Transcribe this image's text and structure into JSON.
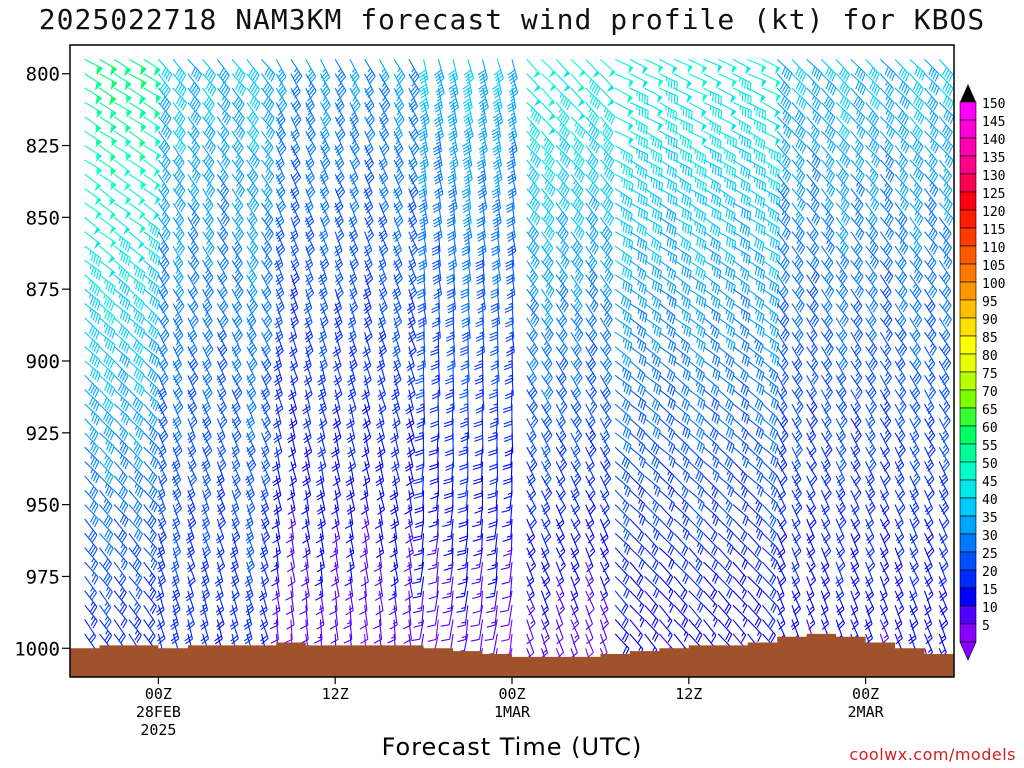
{
  "title": "2025022718 NAM3KM forecast wind profile (kt) for KBOS",
  "xlabel": "Forecast Time (UTC)",
  "credit": "coolwx.com/models",
  "chart_data": {
    "type": "wind-barb profile",
    "y_axis": {
      "label": "",
      "ticks": [
        800,
        825,
        850,
        875,
        900,
        925,
        950,
        975,
        1000
      ],
      "range_hpa": [
        790,
        1010
      ],
      "reversed": true
    },
    "x_axis": {
      "ticks": [
        {
          "hour": 6,
          "lines": [
            "00Z",
            "28FEB",
            "2025"
          ]
        },
        {
          "hour": 18,
          "lines": [
            "12Z"
          ]
        },
        {
          "hour": 30,
          "lines": [
            "00Z",
            "1MAR"
          ]
        },
        {
          "hour": 42,
          "lines": [
            "12Z"
          ]
        },
        {
          "hour": 54,
          "lines": [
            "00Z",
            "2MAR"
          ]
        }
      ],
      "range_hours": [
        0,
        60
      ]
    },
    "levels_hpa": [
      795,
      800,
      805,
      810,
      815,
      820,
      825,
      830,
      835,
      840,
      845,
      850,
      855,
      860,
      865,
      870,
      875,
      880,
      885,
      890,
      895,
      900,
      905,
      910,
      915,
      920,
      925,
      930,
      935,
      940,
      945,
      950,
      955,
      960,
      965,
      970,
      975,
      980,
      985,
      990,
      995,
      1000
    ],
    "forecast_hours": [
      1,
      2,
      3,
      4,
      5,
      6,
      7,
      8,
      9,
      10,
      11,
      12,
      13,
      14,
      15,
      16,
      17,
      18,
      19,
      20,
      21,
      22,
      23,
      24,
      25,
      26,
      27,
      28,
      29,
      30,
      31,
      32,
      33,
      34,
      35,
      36,
      37,
      38,
      39,
      40,
      41,
      42,
      43,
      44,
      45,
      46,
      47,
      48,
      49,
      50,
      51,
      52,
      53,
      54,
      55,
      56,
      57,
      58,
      59,
      60
    ],
    "wind_phases": [
      {
        "hours": [
          0,
          6
        ],
        "direction_deg": 300,
        "speed_kt_top": 60,
        "speed_kt_sfc": 20
      },
      {
        "hours": [
          6,
          14
        ],
        "direction_deg": 320,
        "speed_kt_top": 40,
        "speed_kt_sfc": 20
      },
      {
        "hours": [
          14,
          24
        ],
        "direction_deg": 330,
        "speed_kt_top": 35,
        "speed_kt_sfc": 10
      },
      {
        "hours": [
          24,
          31
        ],
        "direction_deg": 345,
        "speed_kt_top": 40,
        "speed_kt_sfc": 10
      },
      {
        "hours": [
          31,
          37
        ],
        "direction_deg": 315,
        "speed_kt_top": 50,
        "speed_kt_sfc": 10
      },
      {
        "hours": [
          37,
          48
        ],
        "direction_deg": 295,
        "speed_kt_top": 50,
        "speed_kt_sfc": 15
      },
      {
        "hours": [
          48,
          60
        ],
        "direction_deg": 315,
        "speed_kt_top": 40,
        "speed_kt_sfc": 15
      }
    ],
    "surface_pressure_hpa": [
      {
        "hour": 0,
        "p": 1000
      },
      {
        "hour": 2,
        "p": 999
      },
      {
        "hour": 4,
        "p": 999
      },
      {
        "hour": 6,
        "p": 1000
      },
      {
        "hour": 8,
        "p": 999
      },
      {
        "hour": 10,
        "p": 999
      },
      {
        "hour": 12,
        "p": 999
      },
      {
        "hour": 14,
        "p": 998
      },
      {
        "hour": 16,
        "p": 999
      },
      {
        "hour": 18,
        "p": 999
      },
      {
        "hour": 20,
        "p": 999
      },
      {
        "hour": 22,
        "p": 999
      },
      {
        "hour": 24,
        "p": 1000
      },
      {
        "hour": 26,
        "p": 1001
      },
      {
        "hour": 28,
        "p": 1002
      },
      {
        "hour": 30,
        "p": 1003
      },
      {
        "hour": 32,
        "p": 1003
      },
      {
        "hour": 34,
        "p": 1003
      },
      {
        "hour": 36,
        "p": 1002
      },
      {
        "hour": 38,
        "p": 1001
      },
      {
        "hour": 40,
        "p": 1000
      },
      {
        "hour": 42,
        "p": 999
      },
      {
        "hour": 44,
        "p": 999
      },
      {
        "hour": 46,
        "p": 998
      },
      {
        "hour": 48,
        "p": 996
      },
      {
        "hour": 50,
        "p": 995
      },
      {
        "hour": 52,
        "p": 996
      },
      {
        "hour": 54,
        "p": 998
      },
      {
        "hour": 56,
        "p": 1000
      },
      {
        "hour": 58,
        "p": 1002
      },
      {
        "hour": 60,
        "p": 1003
      }
    ],
    "ground_color": "#a0522d",
    "colorbar": {
      "labels": [
        150,
        145,
        140,
        135,
        130,
        125,
        120,
        115,
        110,
        105,
        100,
        95,
        90,
        85,
        80,
        75,
        70,
        65,
        60,
        55,
        50,
        45,
        40,
        35,
        30,
        25,
        20,
        15,
        10,
        5
      ],
      "colors": [
        "#ff00ff",
        "#ff00d8",
        "#ff00b0",
        "#ff0088",
        "#ff0050",
        "#ff0010",
        "#ff1a00",
        "#ff3a00",
        "#ff5a00",
        "#ff7800",
        "#ff9600",
        "#ffc000",
        "#ffe000",
        "#ffff00",
        "#e8ff00",
        "#b8ff00",
        "#7cff00",
        "#33ff33",
        "#00ff66",
        "#00ff99",
        "#00ffcc",
        "#00e8e8",
        "#00ccff",
        "#00a4ff",
        "#0078ff",
        "#0050ff",
        "#0028ff",
        "#0000ff",
        "#5000ff",
        "#8800ff"
      ]
    }
  }
}
